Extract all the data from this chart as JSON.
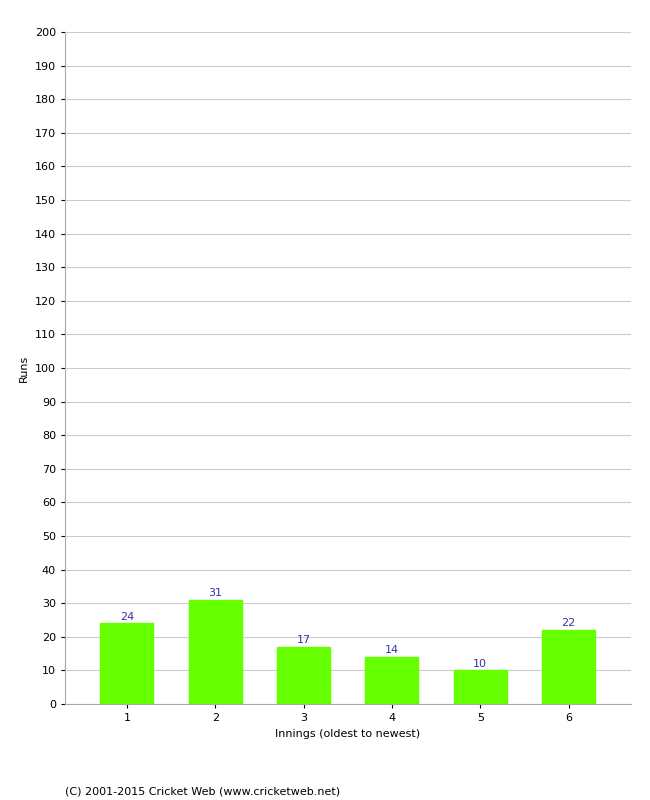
{
  "categories": [
    "1",
    "2",
    "3",
    "4",
    "5",
    "6"
  ],
  "values": [
    24,
    31,
    17,
    14,
    10,
    22
  ],
  "bar_color": "#66ff00",
  "bar_edge_color": "#66ff00",
  "xlabel": "Innings (oldest to newest)",
  "ylabel": "Runs",
  "ylim": [
    0,
    200
  ],
  "yticks": [
    0,
    10,
    20,
    30,
    40,
    50,
    60,
    70,
    80,
    90,
    100,
    110,
    120,
    130,
    140,
    150,
    160,
    170,
    180,
    190,
    200
  ],
  "annotation_color": "#3333aa",
  "annotation_fontsize": 8,
  "axis_label_fontsize": 8,
  "tick_fontsize": 8,
  "footer_text": "(C) 2001-2015 Cricket Web (www.cricketweb.net)",
  "footer_fontsize": 8,
  "background_color": "#ffffff",
  "grid_color": "#cccccc"
}
